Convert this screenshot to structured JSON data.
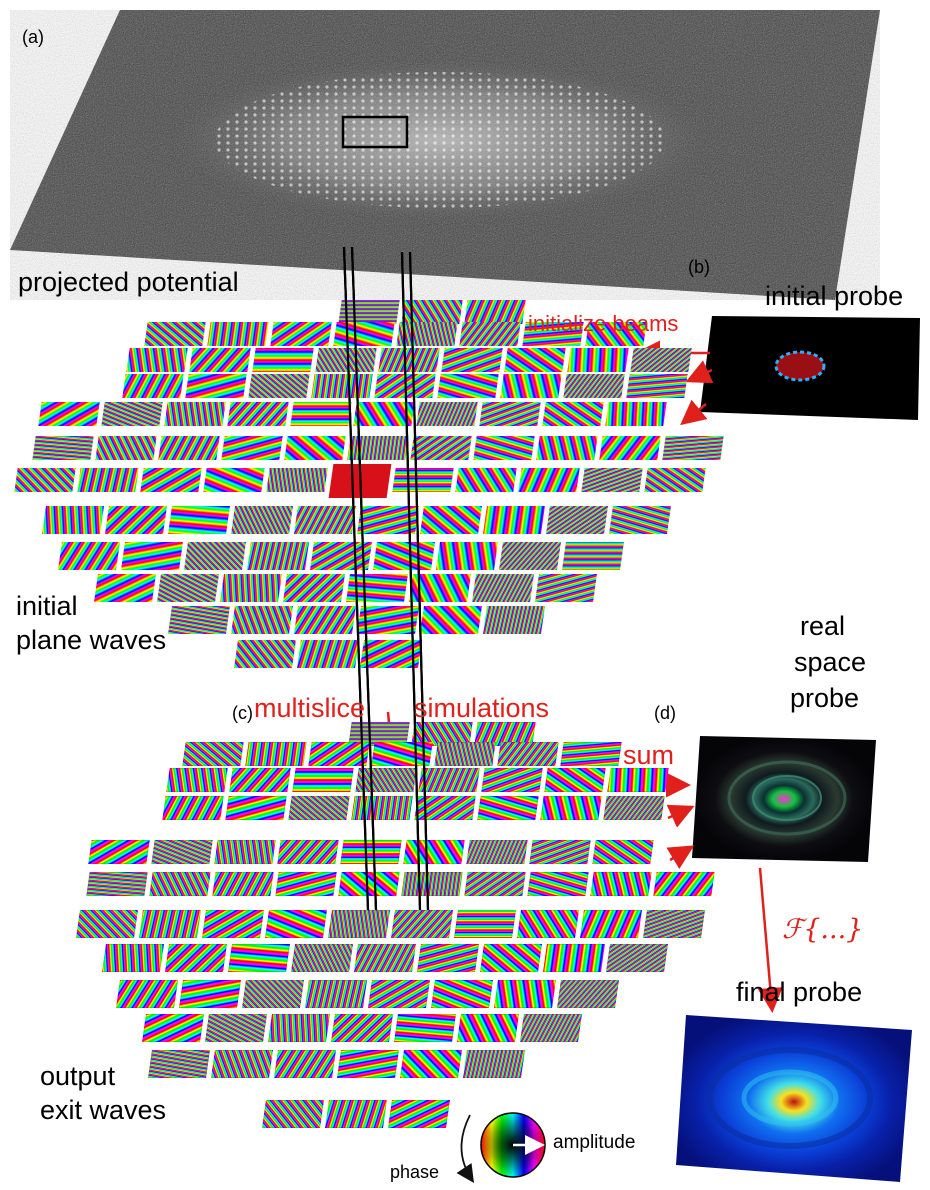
{
  "panels": {
    "a": "(a)",
    "b": "(b)",
    "c": "(c)",
    "d": "(d)"
  },
  "labels": {
    "projected_potential": "projected potential",
    "initial_probe": "initial probe",
    "initialize_beams": "initialize beams",
    "initial_plane_waves_1": "initial",
    "initial_plane_waves_2": "plane waves",
    "multislice": "multislice",
    "simulations": "simulations",
    "real_space_1": "real",
    "real_space_2": "space",
    "real_space_3": "probe",
    "sum": "sum",
    "fourier": "ℱ{...}",
    "final_probe": "final probe",
    "output_1": "output",
    "output_2": "exit waves",
    "phase": "phase",
    "amplitude": "amplitude"
  },
  "colors": {
    "accent_red": "#e0201b",
    "center_tile": "#d8101a"
  }
}
